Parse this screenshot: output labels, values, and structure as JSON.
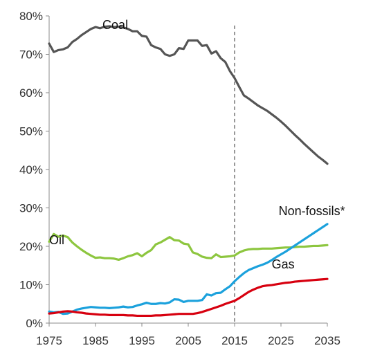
{
  "chart_data": {
    "type": "line",
    "title": "",
    "xlabel": "",
    "ylabel": "",
    "x": [
      1975,
      1976,
      1977,
      1978,
      1979,
      1980,
      1981,
      1982,
      1983,
      1984,
      1985,
      1986,
      1987,
      1988,
      1989,
      1990,
      1991,
      1992,
      1993,
      1994,
      1995,
      1996,
      1997,
      1998,
      1999,
      2000,
      2001,
      2002,
      2003,
      2004,
      2005,
      2006,
      2007,
      2008,
      2009,
      2010,
      2011,
      2012,
      2013,
      2014,
      2015,
      2016,
      2017,
      2018,
      2019,
      2020,
      2021,
      2022,
      2023,
      2024,
      2025,
      2026,
      2027,
      2028,
      2029,
      2030,
      2031,
      2032,
      2033,
      2034,
      2035
    ],
    "xlim": [
      1975,
      2035
    ],
    "ylim": [
      0,
      80
    ],
    "x_ticks": [
      "1975",
      "1985",
      "1995",
      "2005",
      "2015",
      "2025",
      "2035"
    ],
    "y_ticks": [
      "0%",
      "10%",
      "20%",
      "30%",
      "40%",
      "50%",
      "60%",
      "70%",
      "80%"
    ],
    "y_tick_values": [
      0,
      10,
      20,
      30,
      40,
      50,
      60,
      70,
      80
    ],
    "x_tick_values": [
      1975,
      1985,
      1995,
      2005,
      2015,
      2025,
      2035
    ],
    "divider_x": 2015,
    "divider_style": "dashed",
    "grid": false,
    "series": [
      {
        "name": "Coal",
        "color": "#555555",
        "values": [
          72.8,
          70.6,
          71.1,
          71.3,
          71.8,
          73.2,
          74.0,
          75.0,
          75.8,
          76.6,
          77.1,
          76.8,
          77.2,
          77.3,
          77.1,
          77.2,
          77.0,
          76.6,
          76.0,
          76.0,
          74.8,
          74.6,
          72.4,
          71.8,
          71.4,
          70.0,
          69.6,
          70.0,
          71.6,
          71.4,
          73.6,
          73.6,
          73.6,
          72.2,
          72.4,
          70.2,
          70.8,
          69.0,
          68.0,
          65.6,
          63.8,
          61.5,
          59.3,
          58.5,
          57.6,
          56.7,
          56.0,
          55.3,
          54.4,
          53.5,
          52.5,
          51.4,
          50.2,
          49.0,
          47.9,
          46.7,
          45.6,
          44.5,
          43.4,
          42.5,
          41.5
        ]
      },
      {
        "name": "Oil",
        "color": "#8DC63F",
        "values": [
          21.2,
          23.2,
          22.5,
          22.8,
          22.4,
          21.0,
          20.0,
          19.1,
          18.3,
          17.6,
          17.0,
          17.1,
          16.9,
          16.9,
          16.8,
          16.5,
          16.9,
          17.4,
          17.7,
          18.2,
          17.4,
          18.3,
          19.0,
          20.5,
          21.0,
          21.7,
          22.4,
          21.6,
          21.5,
          20.7,
          20.5,
          18.4,
          18.0,
          17.3,
          17.0,
          16.9,
          17.9,
          17.2,
          17.3,
          17.4,
          17.6,
          18.4,
          18.9,
          19.2,
          19.3,
          19.3,
          19.4,
          19.4,
          19.4,
          19.5,
          19.6,
          19.7,
          19.7,
          19.8,
          19.9,
          19.9,
          20.0,
          20.1,
          20.1,
          20.2,
          20.3
        ]
      },
      {
        "name": "Non-fossils*",
        "color": "#1BA1DC",
        "values": [
          3.0,
          2.8,
          2.9,
          2.4,
          2.5,
          3.0,
          3.5,
          3.8,
          4.0,
          4.2,
          4.1,
          4.0,
          4.0,
          3.9,
          4.0,
          4.1,
          4.3,
          4.1,
          4.2,
          4.6,
          4.9,
          5.3,
          5.0,
          5.0,
          5.2,
          5.1,
          5.4,
          6.2,
          6.1,
          5.5,
          5.8,
          5.8,
          5.8,
          6.0,
          7.5,
          7.2,
          7.8,
          7.9,
          8.8,
          9.6,
          10.9,
          12.0,
          13.0,
          13.8,
          14.3,
          14.8,
          15.2,
          15.7,
          16.4,
          17.2,
          17.9,
          18.6,
          19.4,
          20.2,
          21.0,
          21.8,
          22.6,
          23.4,
          24.2,
          25.0,
          25.8
        ]
      },
      {
        "name": "Gas",
        "color": "#D7000F",
        "values": [
          2.5,
          2.6,
          2.8,
          3.0,
          3.1,
          3.0,
          2.8,
          2.7,
          2.5,
          2.4,
          2.3,
          2.2,
          2.2,
          2.1,
          2.1,
          2.1,
          2.1,
          2.0,
          2.0,
          1.9,
          1.9,
          1.9,
          1.9,
          2.0,
          2.0,
          2.1,
          2.2,
          2.3,
          2.4,
          2.4,
          2.4,
          2.4,
          2.6,
          2.9,
          3.3,
          3.7,
          4.1,
          4.5,
          5.0,
          5.4,
          5.8,
          6.5,
          7.3,
          8.1,
          8.7,
          9.2,
          9.6,
          9.8,
          9.9,
          10.1,
          10.3,
          10.5,
          10.6,
          10.8,
          10.9,
          11.0,
          11.1,
          11.2,
          11.3,
          11.4,
          11.5
        ]
      }
    ],
    "labels": [
      {
        "series": "Coal",
        "text": "Coal",
        "x": 1986.5,
        "y": 76.6
      },
      {
        "series": "Oil",
        "text": "Oil",
        "x": 1975.0,
        "y": 20.5
      },
      {
        "series": "Non-fossils*",
        "text": "Non-fossils*",
        "x": 2024.5,
        "y": 28.1
      },
      {
        "series": "Gas",
        "text": "Gas",
        "x": 2023.0,
        "y": 14.2
      }
    ]
  }
}
